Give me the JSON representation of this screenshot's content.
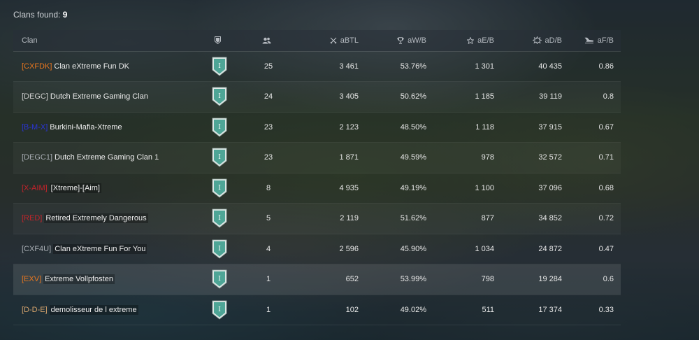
{
  "header": {
    "label": "Clans found:",
    "count": "9"
  },
  "columns": {
    "clan": "Clan",
    "league": "",
    "members": "",
    "battles": "aBTL",
    "winrate": "aW/B",
    "exp": "aE/B",
    "damage": "aD/B",
    "frags": "aF/B"
  },
  "icons": {
    "league": "shield-icon",
    "members": "members-icon",
    "battles": "crossed-swords-icon",
    "winrate": "trophy-icon",
    "exp": "star-icon",
    "damage": "explosion-icon",
    "frags": "plane-icon"
  },
  "colors": {
    "tag_orange": "#e8761e",
    "tag_gray": "#c8c8c8",
    "tag_blue": "#2a35d8",
    "tag_red": "#c4232b",
    "tag_darkred": "#c2252a",
    "tag_lightgray": "#a9aeb4",
    "tag_tan": "#d6a46c",
    "league_shield": "#4ea596"
  },
  "rows": [
    {
      "tag": "[CXFDK]",
      "tag_color": "#e8761e",
      "name": "Clan eXtreme Fun DK",
      "league": "I",
      "members": "25",
      "battles": "3 461",
      "winrate": "53.76%",
      "exp": "1 301",
      "damage": "40 435",
      "frags": "0.86"
    },
    {
      "tag": "[DEGC]",
      "tag_color": "#d0d0d0",
      "name": "Dutch Extreme Gaming Clan",
      "league": "I",
      "members": "24",
      "battles": "3 405",
      "winrate": "50.62%",
      "exp": "1 185",
      "damage": "39 119",
      "frags": "0.8"
    },
    {
      "tag": "[B-M-X]",
      "tag_color": "#2a35d8",
      "name": "Burkini-Mafia-Xtreme",
      "league": "I",
      "members": "23",
      "battles": "2 123",
      "winrate": "48.50%",
      "exp": "1 118",
      "damage": "37 915",
      "frags": "0.67"
    },
    {
      "tag": "[DEGC1]",
      "tag_color": "#a9aeb4",
      "name": "Dutch Extreme Gaming Clan 1",
      "league": "I",
      "members": "23",
      "battles": "1 871",
      "winrate": "49.59%",
      "exp": "978",
      "damage": "32 572",
      "frags": "0.71"
    },
    {
      "tag": "[X-AIM]",
      "tag_color": "#c4232b",
      "name": "[Xtreme]-[Aim]",
      "league": "I",
      "members": "8",
      "battles": "4 935",
      "winrate": "49.19%",
      "exp": "1 100",
      "damage": "37 096",
      "frags": "0.68"
    },
    {
      "tag": "[RED]",
      "tag_color": "#c2252a",
      "name": "Retired Extremely Dangerous",
      "league": "I",
      "members": "5",
      "battles": "2 119",
      "winrate": "51.62%",
      "exp": "877",
      "damage": "34 852",
      "frags": "0.72"
    },
    {
      "tag": "[CXF4U]",
      "tag_color": "#a9aeb4",
      "name": "Clan eXtreme Fun For You",
      "league": "I",
      "members": "4",
      "battles": "2 596",
      "winrate": "45.90%",
      "exp": "1 034",
      "damage": "24 872",
      "frags": "0.47"
    },
    {
      "tag": "[EXV]",
      "tag_color": "#e8761e",
      "name": "Extreme Vollpfosten",
      "league": "I",
      "members": "1",
      "battles": "652",
      "winrate": "53.99%",
      "exp": "798",
      "damage": "19 284",
      "frags": "0.6"
    },
    {
      "tag": "[D-D-E]",
      "tag_color": "#d6a46c",
      "name": "demolisseur de l extreme",
      "league": "I",
      "members": "1",
      "battles": "102",
      "winrate": "49.02%",
      "exp": "511",
      "damage": "17 374",
      "frags": "0.33"
    }
  ]
}
